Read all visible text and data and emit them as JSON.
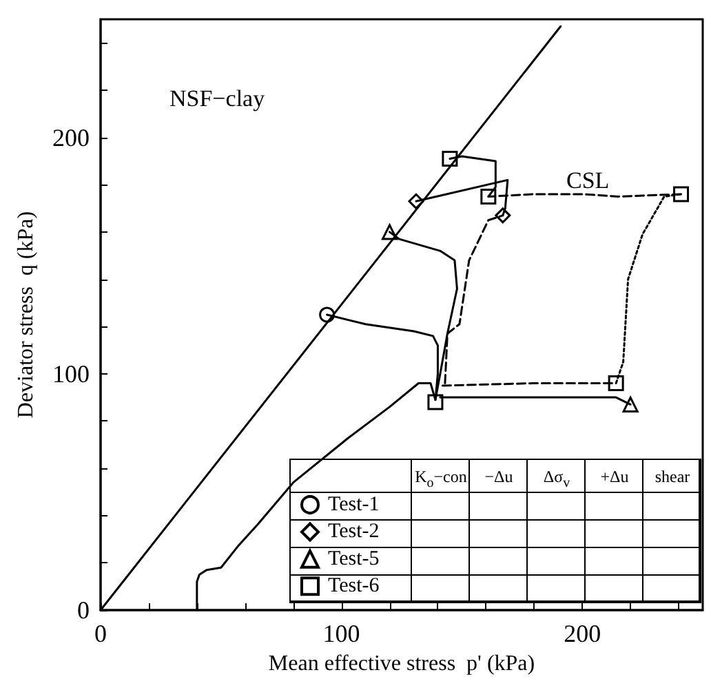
{
  "chart_data": {
    "type": "line",
    "title": "NSF−clay",
    "xlabel": "Mean effective stress  p' (kPa)",
    "ylabel": "Deviator stress  q (kPa)",
    "xlim": [
      0,
      250
    ],
    "ylim": [
      0,
      250
    ],
    "xticks": [
      0,
      {
        "value": 20,
        "label": null
      },
      {
        "value": 40,
        "label": null
      },
      {
        "value": 60,
        "label": null
      },
      {
        "value": 80,
        "label": null
      },
      100,
      {
        "value": 120,
        "label": null
      },
      {
        "value": 140,
        "label": null
      },
      {
        "value": 160,
        "label": null
      },
      {
        "value": 180,
        "label": null
      },
      200,
      {
        "value": 220,
        "label": null
      },
      {
        "value": 240,
        "label": null
      }
    ],
    "yticks": [
      0,
      {
        "value": 20,
        "label": null
      },
      {
        "value": 40,
        "label": null
      },
      {
        "value": 60,
        "label": null
      },
      {
        "value": 80,
        "label": null
      },
      100,
      {
        "value": 120,
        "label": null
      },
      {
        "value": 140,
        "label": null
      },
      {
        "value": 160,
        "label": null
      },
      {
        "value": 180,
        "label": null
      },
      200,
      {
        "value": 220,
        "label": null
      },
      {
        "value": 240,
        "label": null
      }
    ],
    "grid": false,
    "legend": "bottom",
    "line_style": "solid",
    "annotations": [
      "CSL",
      "K$_{o}$−con",
      "−Δu",
      "Δσ$_{v}$",
      "+Δu",
      "shear"
    ],
    "series": [
      {
        "color": "#000000",
        "x": [
          0,
          191
        ],
        "values": [
          0,
          247
        ]
      },
      {
        "color": "#000000",
        "x": [
          40,
          40,
          41,
          44,
          50,
          57,
          65,
          80,
          103,
          120,
          132,
          137,
          139
        ],
        "values": [
          0,
          12,
          15,
          17,
          18,
          27,
          36,
          54,
          73,
          86,
          96,
          96,
          89
        ]
      },
      {
        "color": "#000000",
        "line_style": "dashed",
        "x": [
          142,
          180,
          214
        ],
        "values": [
          95,
          96,
          96
        ]
      },
      {
        "color": "#000000",
        "line_style": "dotted",
        "x": [
          214,
          217,
          219,
          225,
          234,
          241
        ],
        "values": [
          96,
          105,
          140,
          159,
          175,
          176
        ]
      },
      {
        "color": "#000000",
        "line_style": "dashed",
        "x": [
          241,
          215,
          200,
          180,
          161
        ],
        "values": [
          176,
          175,
          176,
          176,
          175
        ]
      },
      {
        "color": "#000000",
        "line_style": "dashed",
        "x": [
          143,
          144,
          149,
          153,
          161,
          167
        ],
        "values": [
          96,
          117,
          121,
          148,
          165,
          167
        ]
      },
      {
        "color": "#000000",
        "x": [
          141,
          180,
          214,
          220
        ],
        "values": [
          90,
          90,
          90,
          87
        ]
      },
      {
        "color": "#000000",
        "x": [
          139,
          140,
          140,
          138,
          130,
          110,
          94
        ],
        "values": [
          89,
          100,
          112,
          116,
          118,
          121,
          125
        ]
      },
      {
        "color": "#000000",
        "x": [
          167,
          168,
          169,
          131
        ],
        "values": [
          167,
          170,
          182,
          173
        ]
      },
      {
        "color": "#000000",
        "x": [
          139,
          141,
          144,
          148,
          147,
          141,
          124,
          120
        ],
        "values": [
          89,
          100,
          117,
          136,
          148,
          152,
          157,
          160
        ]
      },
      {
        "color": "#000000",
        "x": [
          161,
          164,
          164,
          150,
          145
        ],
        "values": [
          175,
          179,
          190,
          192,
          191
        ]
      },
      {
        "type": "scatter",
        "marker": "square",
        "color": "#000000",
        "x": [
          139,
          214,
          241,
          161
        ],
        "values": [
          88,
          96,
          176,
          175
        ]
      },
      {
        "type": "scatter",
        "marker": "diamond",
        "color": "#000000",
        "x": [
          167
        ],
        "values": [
          167
        ]
      },
      {
        "type": "scatter",
        "marker": "triangle",
        "color": "#000000",
        "x": [
          220
        ],
        "values": [
          87
        ]
      },
      {
        "name": "Test-1",
        "type": "scatter",
        "marker": "circle",
        "color": "#000000",
        "x": [
          94
        ],
        "values": [
          125
        ]
      },
      {
        "name": "Test-2",
        "type": "scatter",
        "marker": "diamond",
        "color": "#000000",
        "x": [
          131
        ],
        "values": [
          173
        ]
      },
      {
        "name": "Test-5",
        "type": "scatter",
        "marker": "triangle",
        "color": "#000000",
        "x": [
          120
        ],
        "values": [
          160
        ]
      },
      {
        "name": "Test-6",
        "type": "scatter",
        "marker": "square",
        "color": "#000000",
        "x": [
          145
        ],
        "values": [
          191
        ]
      }
    ]
  }
}
